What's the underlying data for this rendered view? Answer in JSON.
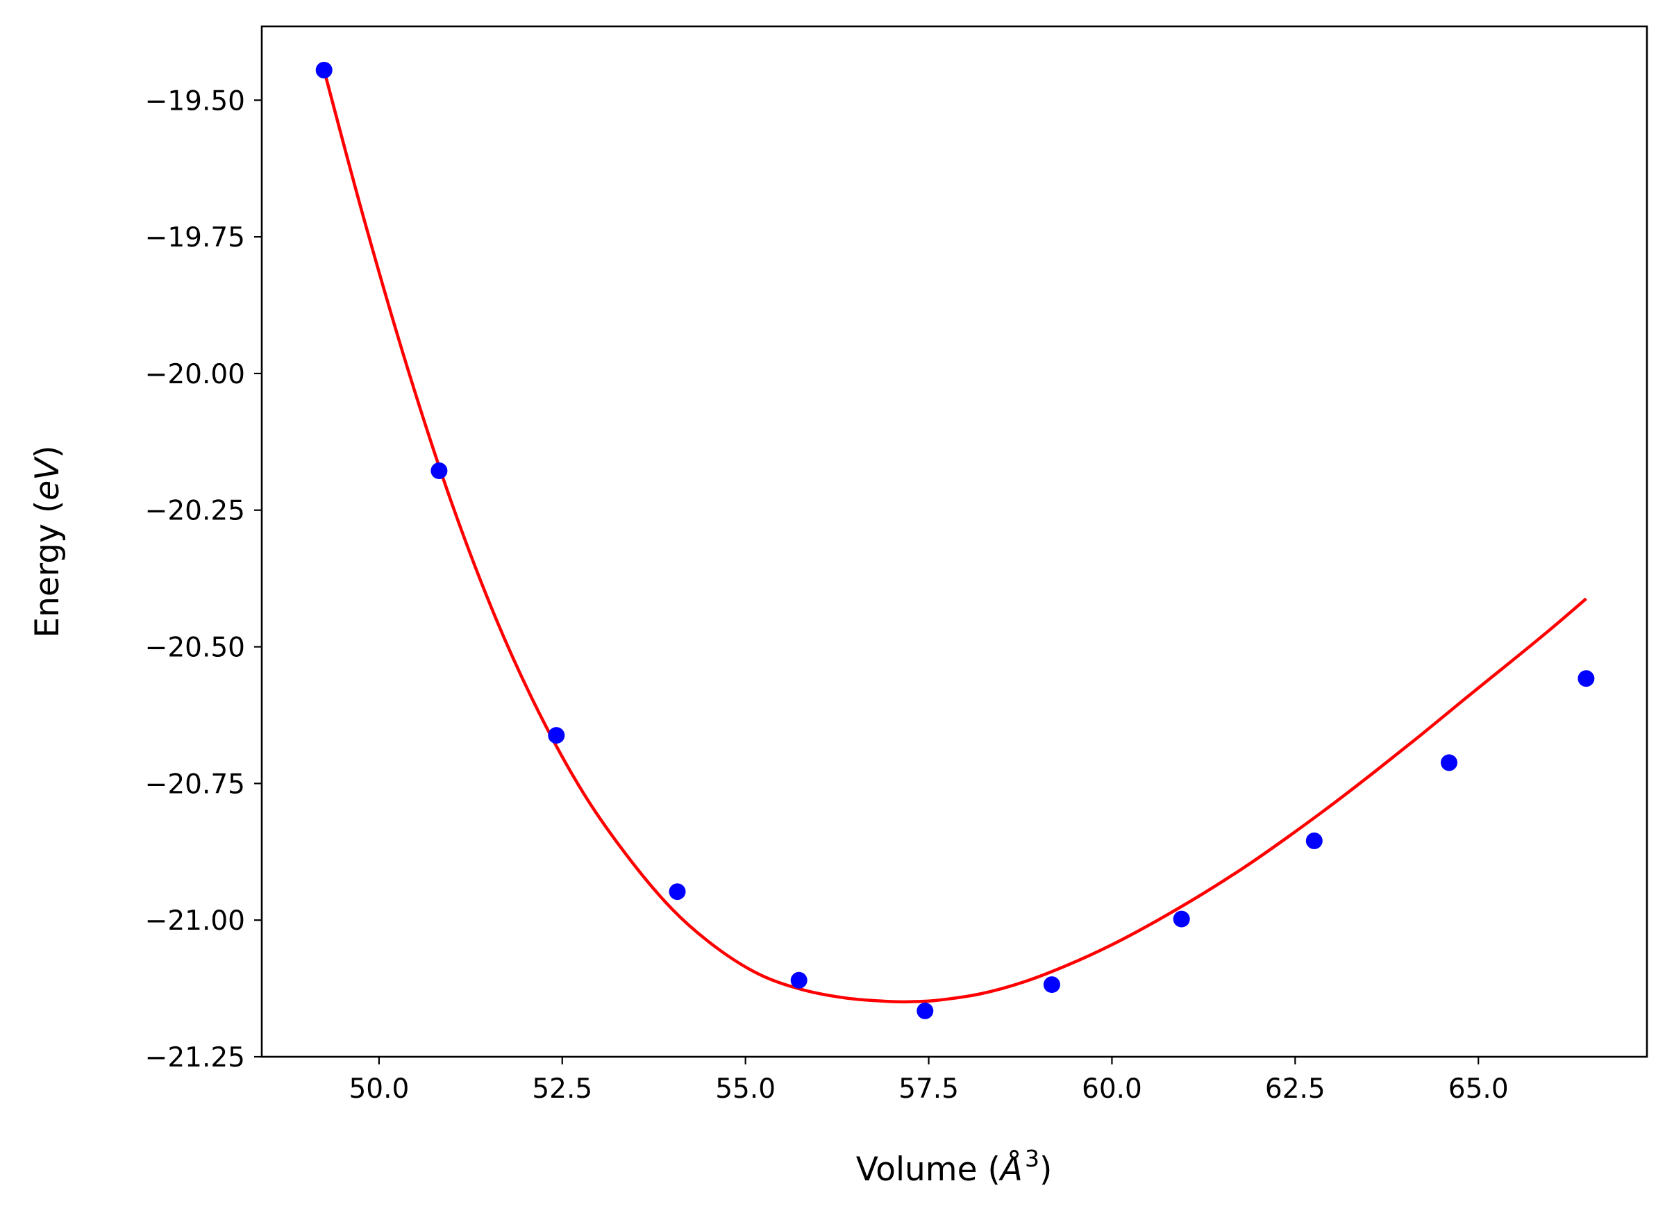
{
  "chart_data": {
    "type": "scatter",
    "title": "",
    "xlabel": "Volume",
    "xlabel_parts": {
      "text": "Volume (",
      "symbol": "Å",
      "sup": "3",
      "close": ")"
    },
    "ylabel": "Energy",
    "ylabel_parts": {
      "text": "Energy (",
      "italic": "eV",
      "close": ")"
    },
    "xlim": [
      48.4,
      67.3
    ],
    "ylim": [
      -21.25,
      -19.365
    ],
    "x_ticks": [
      50.0,
      52.5,
      55.0,
      57.5,
      60.0,
      62.5,
      65.0
    ],
    "x_tick_labels": [
      "50.0",
      "52.5",
      "55.0",
      "57.5",
      "60.0",
      "62.5",
      "65.0"
    ],
    "y_ticks": [
      -19.5,
      -19.75,
      -20.0,
      -20.25,
      -20.5,
      -20.75,
      -21.0,
      -21.25
    ],
    "y_tick_labels": [
      "−19.50",
      "−19.75",
      "−20.00",
      "−20.25",
      "−20.50",
      "−20.75",
      "−21.00",
      "−21.25"
    ],
    "grid": false,
    "legend": "none",
    "series": [
      {
        "kind": "points",
        "color": "#0000ff",
        "x": [
          49.25,
          50.82,
          52.42,
          54.07,
          55.73,
          57.45,
          59.18,
          60.95,
          62.76,
          64.6,
          66.47
        ],
        "y": [
          -19.445,
          -20.178,
          -20.662,
          -20.948,
          -21.11,
          -21.166,
          -21.118,
          -20.998,
          -20.855,
          -20.712,
          -20.558
        ]
      },
      {
        "kind": "fit-curve",
        "color": "#ff0000",
        "x": [
          49.25,
          49.8,
          50.4,
          51.0,
          51.6,
          52.2,
          52.8,
          53.4,
          54.0,
          54.6,
          55.2,
          55.8,
          56.4,
          57.0,
          57.3,
          57.6,
          58.2,
          58.8,
          59.4,
          60.0,
          60.6,
          61.2,
          61.8,
          62.4,
          63.0,
          63.6,
          64.2,
          64.8,
          65.4,
          66.0,
          66.47
        ],
        "y": [
          -19.445,
          -19.72,
          -19.995,
          -20.24,
          -20.45,
          -20.625,
          -20.77,
          -20.885,
          -20.98,
          -21.05,
          -21.1,
          -21.128,
          -21.143,
          -21.149,
          -21.149,
          -21.147,
          -21.135,
          -21.113,
          -21.082,
          -21.045,
          -21.002,
          -20.955,
          -20.904,
          -20.848,
          -20.789,
          -20.727,
          -20.663,
          -20.597,
          -20.532,
          -20.466,
          -20.412
        ]
      }
    ]
  }
}
